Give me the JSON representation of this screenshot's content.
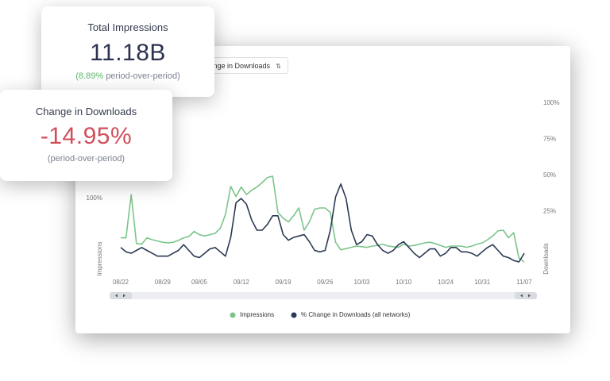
{
  "cards": [
    {
      "title": "Total Impressions",
      "value": "11.18B",
      "change": "(8.89%",
      "note": "period-over-period)"
    },
    {
      "title": "Change in Downloads",
      "value": "-14.95%",
      "note": "(period-over-period)"
    }
  ],
  "dropdown": {
    "label": "Change in Downloads"
  },
  "chart_data": {
    "type": "line",
    "categories": [
      "08/22",
      null,
      null,
      null,
      null,
      null,
      null,
      null,
      "08/29",
      null,
      null,
      null,
      null,
      null,
      null,
      "09/05",
      null,
      null,
      null,
      null,
      null,
      null,
      null,
      "09/12",
      null,
      null,
      null,
      null,
      null,
      null,
      null,
      "09/19",
      null,
      null,
      null,
      null,
      null,
      null,
      null,
      "09/26",
      null,
      null,
      null,
      null,
      null,
      null,
      "10/03",
      null,
      null,
      null,
      null,
      null,
      null,
      null,
      "10/10",
      null,
      null,
      null,
      null,
      null,
      null,
      null,
      "10/24",
      null,
      null,
      null,
      null,
      null,
      null,
      "10/31",
      null,
      null,
      null,
      null,
      null,
      null,
      null,
      "11/07"
    ],
    "series": [
      {
        "name": "Impressions",
        "color": "#7cc48a",
        "values": [
          38,
          38,
          106,
          29,
          28,
          38,
          35,
          33,
          31,
          30,
          31,
          34,
          38,
          40,
          48,
          43,
          41,
          43,
          45,
          53,
          75,
          119,
          103,
          118,
          106,
          113,
          118,
          125,
          133,
          135,
          78,
          69,
          63,
          73,
          85,
          50,
          63,
          83,
          85,
          85,
          78,
          31,
          19,
          21,
          23,
          25,
          24,
          23,
          25,
          26,
          28,
          25,
          24,
          23,
          28,
          25,
          26,
          28,
          30,
          31,
          29,
          26,
          23,
          25,
          25,
          25,
          23,
          25,
          28,
          30,
          35,
          41,
          49,
          50,
          38,
          46,
          6,
          0
        ]
      },
      {
        "name": "% Change in Downloads (all networks)",
        "color": "#2b3a55",
        "axis": "y2",
        "values": [
          0,
          -3,
          -4,
          -2,
          0,
          -2,
          -4,
          -6,
          -6,
          -6,
          -4,
          -2,
          2,
          -2,
          -6,
          -7,
          -4,
          -1,
          0,
          -3,
          -6,
          7,
          31,
          34,
          30,
          19,
          12,
          12,
          16,
          22,
          22,
          9,
          5,
          7,
          8,
          9,
          4,
          -2,
          -3,
          -2,
          12,
          35,
          44,
          34,
          12,
          2,
          4,
          9,
          8,
          2,
          -2,
          -4,
          -2,
          2,
          4,
          0,
          -4,
          -7,
          -4,
          -1,
          -1,
          -6,
          -4,
          0,
          0,
          -3,
          -3,
          -4,
          -6,
          -3,
          0,
          2,
          -2,
          -6,
          -7,
          -9,
          -10,
          -4
        ]
      }
    ],
    "ylabel": "Impressions",
    "y2label": "Downloads",
    "ylim": [
      0,
      250
    ],
    "yticks": [
      {
        "value": 100,
        "label": "100%"
      }
    ],
    "y2lim": [
      -10,
      100
    ],
    "y2ticks": [
      {
        "value": 25,
        "label": "25%"
      },
      {
        "value": 50,
        "label": "50%"
      },
      {
        "value": 75,
        "label": "75%"
      },
      {
        "value": 100,
        "label": "100%"
      }
    ],
    "legend": "bottom"
  }
}
